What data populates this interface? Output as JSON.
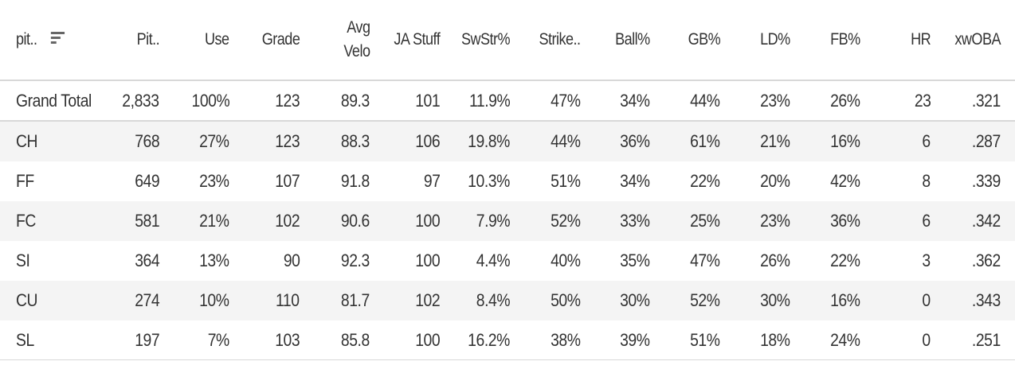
{
  "columns": [
    {
      "key": "pitch",
      "label": "pit.."
    },
    {
      "key": "pitches",
      "label": "Pit.."
    },
    {
      "key": "use",
      "label": "Use"
    },
    {
      "key": "grade",
      "label": "Grade"
    },
    {
      "key": "avg_velo",
      "label": "Avg\nVelo"
    },
    {
      "key": "ja_stuff",
      "label": "JA Stuff"
    },
    {
      "key": "swstr",
      "label": "SwStr%"
    },
    {
      "key": "strike",
      "label": "Strike.."
    },
    {
      "key": "ball",
      "label": "Ball%"
    },
    {
      "key": "gb",
      "label": "GB%"
    },
    {
      "key": "ld",
      "label": "LD%"
    },
    {
      "key": "fb",
      "label": "FB%"
    },
    {
      "key": "hr",
      "label": "HR"
    },
    {
      "key": "xwoba",
      "label": "xwOBA"
    }
  ],
  "sort_icon": "sort-descending-icon",
  "rows": [
    [
      "Grand Total",
      "2,833",
      "100%",
      "123",
      "89.3",
      "101",
      "11.9%",
      "47%",
      "34%",
      "44%",
      "23%",
      "26%",
      "23",
      ".321"
    ],
    [
      "CH",
      "768",
      "27%",
      "123",
      "88.3",
      "106",
      "19.8%",
      "44%",
      "36%",
      "61%",
      "21%",
      "16%",
      "6",
      ".287"
    ],
    [
      "FF",
      "649",
      "23%",
      "107",
      "91.8",
      "97",
      "10.3%",
      "51%",
      "34%",
      "22%",
      "20%",
      "42%",
      "8",
      ".339"
    ],
    [
      "FC",
      "581",
      "21%",
      "102",
      "90.6",
      "100",
      "7.9%",
      "52%",
      "33%",
      "25%",
      "23%",
      "36%",
      "6",
      ".342"
    ],
    [
      "SI",
      "364",
      "13%",
      "90",
      "92.3",
      "100",
      "4.4%",
      "40%",
      "35%",
      "47%",
      "26%",
      "22%",
      "3",
      ".362"
    ],
    [
      "CU",
      "274",
      "10%",
      "110",
      "81.7",
      "102",
      "8.4%",
      "50%",
      "30%",
      "52%",
      "30%",
      "16%",
      "0",
      ".343"
    ],
    [
      "SL",
      "197",
      "7%",
      "103",
      "85.8",
      "100",
      "16.2%",
      "38%",
      "39%",
      "51%",
      "18%",
      "24%",
      "0",
      ".251"
    ]
  ],
  "colors": {
    "text": "#333333",
    "stripe": "#f4f4f4",
    "border": "#d8d8d8"
  }
}
